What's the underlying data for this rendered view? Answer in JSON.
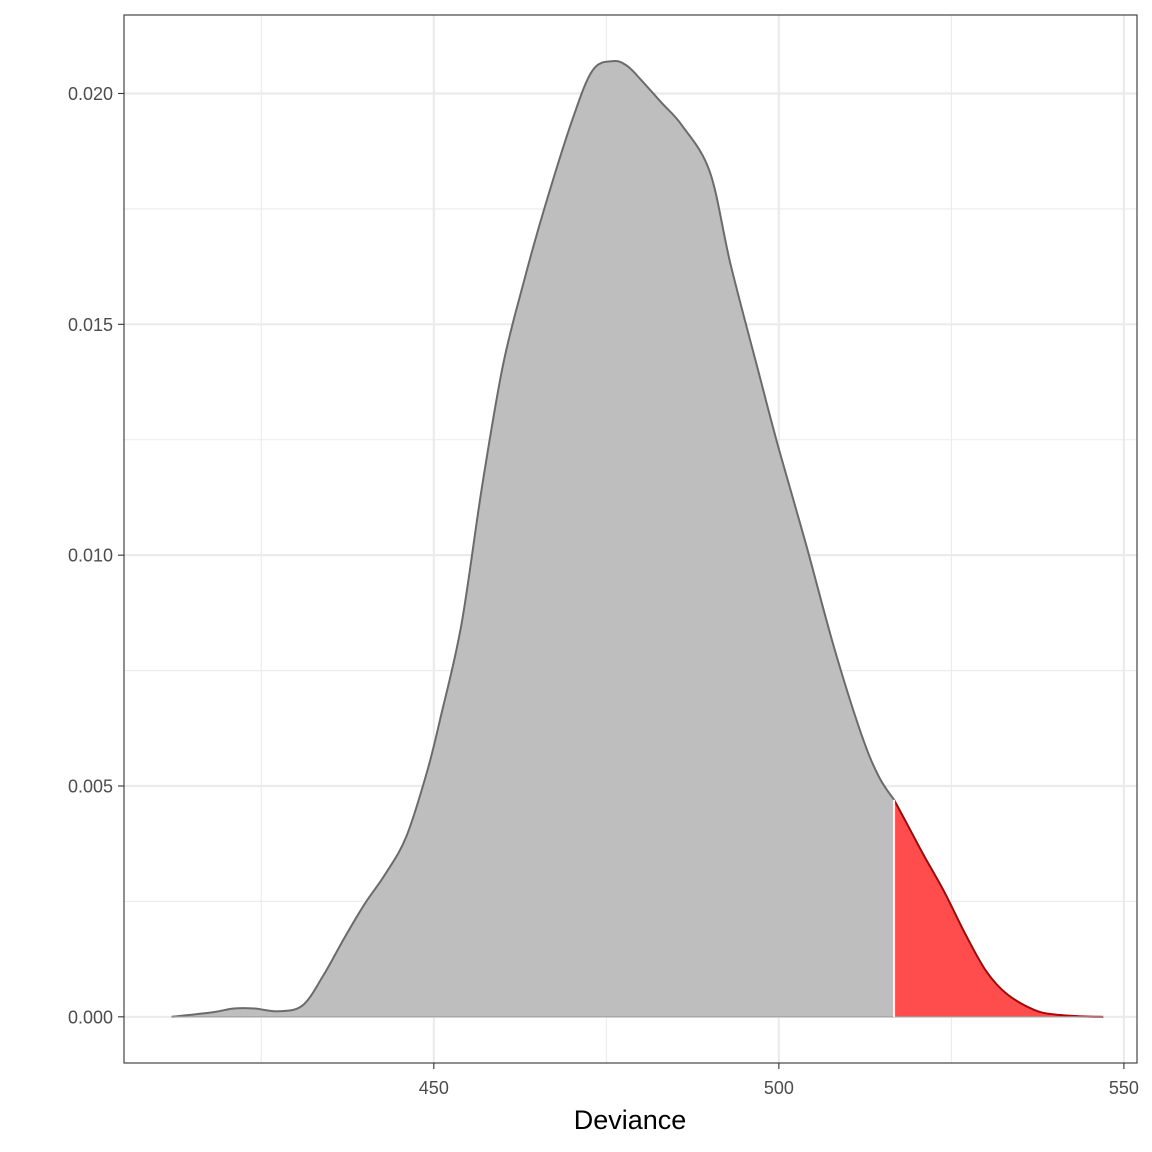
{
  "chart_data": {
    "type": "area",
    "title": "",
    "xlabel": "Deviance",
    "ylabel": "",
    "xlim": [
      405.1,
      551.9
    ],
    "ylim": [
      -0.001,
      0.0217
    ],
    "x_ticks": [
      450,
      500,
      550
    ],
    "x_tick_labels": [
      "450",
      "500",
      "550"
    ],
    "y_ticks": [
      0.0,
      0.005,
      0.01,
      0.015,
      0.02
    ],
    "y_tick_labels": [
      "0.000",
      "0.005",
      "0.010",
      "0.015",
      "0.020"
    ],
    "grid": true,
    "threshold": 516.7,
    "colors": {
      "body_fill": "#bebebe",
      "body_line": "#6b6b6b",
      "tail_fill": "#ff4d4d",
      "tail_line": "#b30000",
      "threshold_line": "#ffffff",
      "grid": "#ebebeb",
      "panel_border": "#333333"
    },
    "series": [
      {
        "x": [
          412.0,
          418.0,
          421.0,
          424.0,
          427.5,
          431.0,
          434.0,
          437.0,
          440.0,
          443.0,
          446.0,
          449.0,
          451.0,
          454.0,
          457.0,
          460.0,
          463.0,
          466.0,
          470.0,
          473.0,
          476.0,
          478.0,
          480.0,
          483.0,
          486.0,
          490.0,
          493.0,
          497.0,
          500.0,
          504.0,
          508.0,
          512.0,
          514.5,
          516.7,
          518.5,
          521.0,
          524.0,
          527.0,
          530.0,
          533.0,
          537.0,
          540.0,
          544.0,
          547.0
        ],
        "y": [
          0.0,
          0.0001,
          0.00018,
          0.00018,
          0.00012,
          0.00025,
          0.0009,
          0.0017,
          0.00245,
          0.0031,
          0.0039,
          0.0053,
          0.0065,
          0.0085,
          0.0115,
          0.0141,
          0.0159,
          0.0175,
          0.0194,
          0.0205,
          0.0207,
          0.0206,
          0.0203,
          0.0198,
          0.0193,
          0.0183,
          0.0163,
          0.014,
          0.0123,
          0.0102,
          0.008,
          0.0061,
          0.0052,
          0.0047,
          0.0042,
          0.0035,
          0.0027,
          0.0018,
          0.001,
          0.0005,
          0.00015,
          5e-05,
          1e-05,
          0.0
        ]
      }
    ]
  }
}
